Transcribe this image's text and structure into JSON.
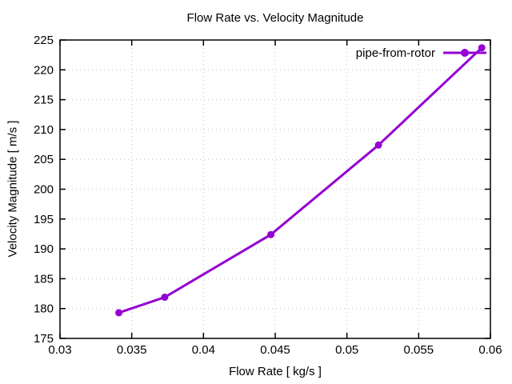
{
  "title": "Flow Rate vs. Velocity Magnitude",
  "legend": {
    "label": "pipe-from-rotor"
  },
  "colors": {
    "line": "#9400d3",
    "grid": "#c4c4c4",
    "axis": "#000000",
    "text": "#000000",
    "background": "#ffffff"
  },
  "chart_data": {
    "type": "line",
    "title": "Flow Rate vs. Velocity Magnitude",
    "xlabel": "Flow Rate [ kg/s ]",
    "ylabel": "Velocity Magnitude [ m/s ]",
    "xlim": [
      0.03,
      0.06
    ],
    "ylim": [
      175,
      225
    ],
    "xticks": [
      0.03,
      0.035,
      0.04,
      0.045,
      0.05,
      0.055,
      0.06
    ],
    "xtick_labels": [
      "0.03",
      "0.035",
      "0.04",
      "0.045",
      "0.05",
      "0.055",
      "0.06"
    ],
    "yticks": [
      175,
      180,
      185,
      190,
      195,
      200,
      205,
      210,
      215,
      220,
      225
    ],
    "ytick_labels": [
      "175",
      "180",
      "185",
      "190",
      "195",
      "200",
      "205",
      "210",
      "215",
      "220",
      "225"
    ],
    "grid": true,
    "grid_style": "dotted",
    "legend_position": "top-right-inside",
    "series": [
      {
        "name": "pipe-from-rotor",
        "color": "#9400d3",
        "marker": "filled-circle",
        "x": [
          0.0341,
          0.0373,
          0.0447,
          0.0522,
          0.0594
        ],
        "y": [
          179.3,
          181.9,
          192.4,
          207.4,
          223.7
        ]
      }
    ]
  }
}
